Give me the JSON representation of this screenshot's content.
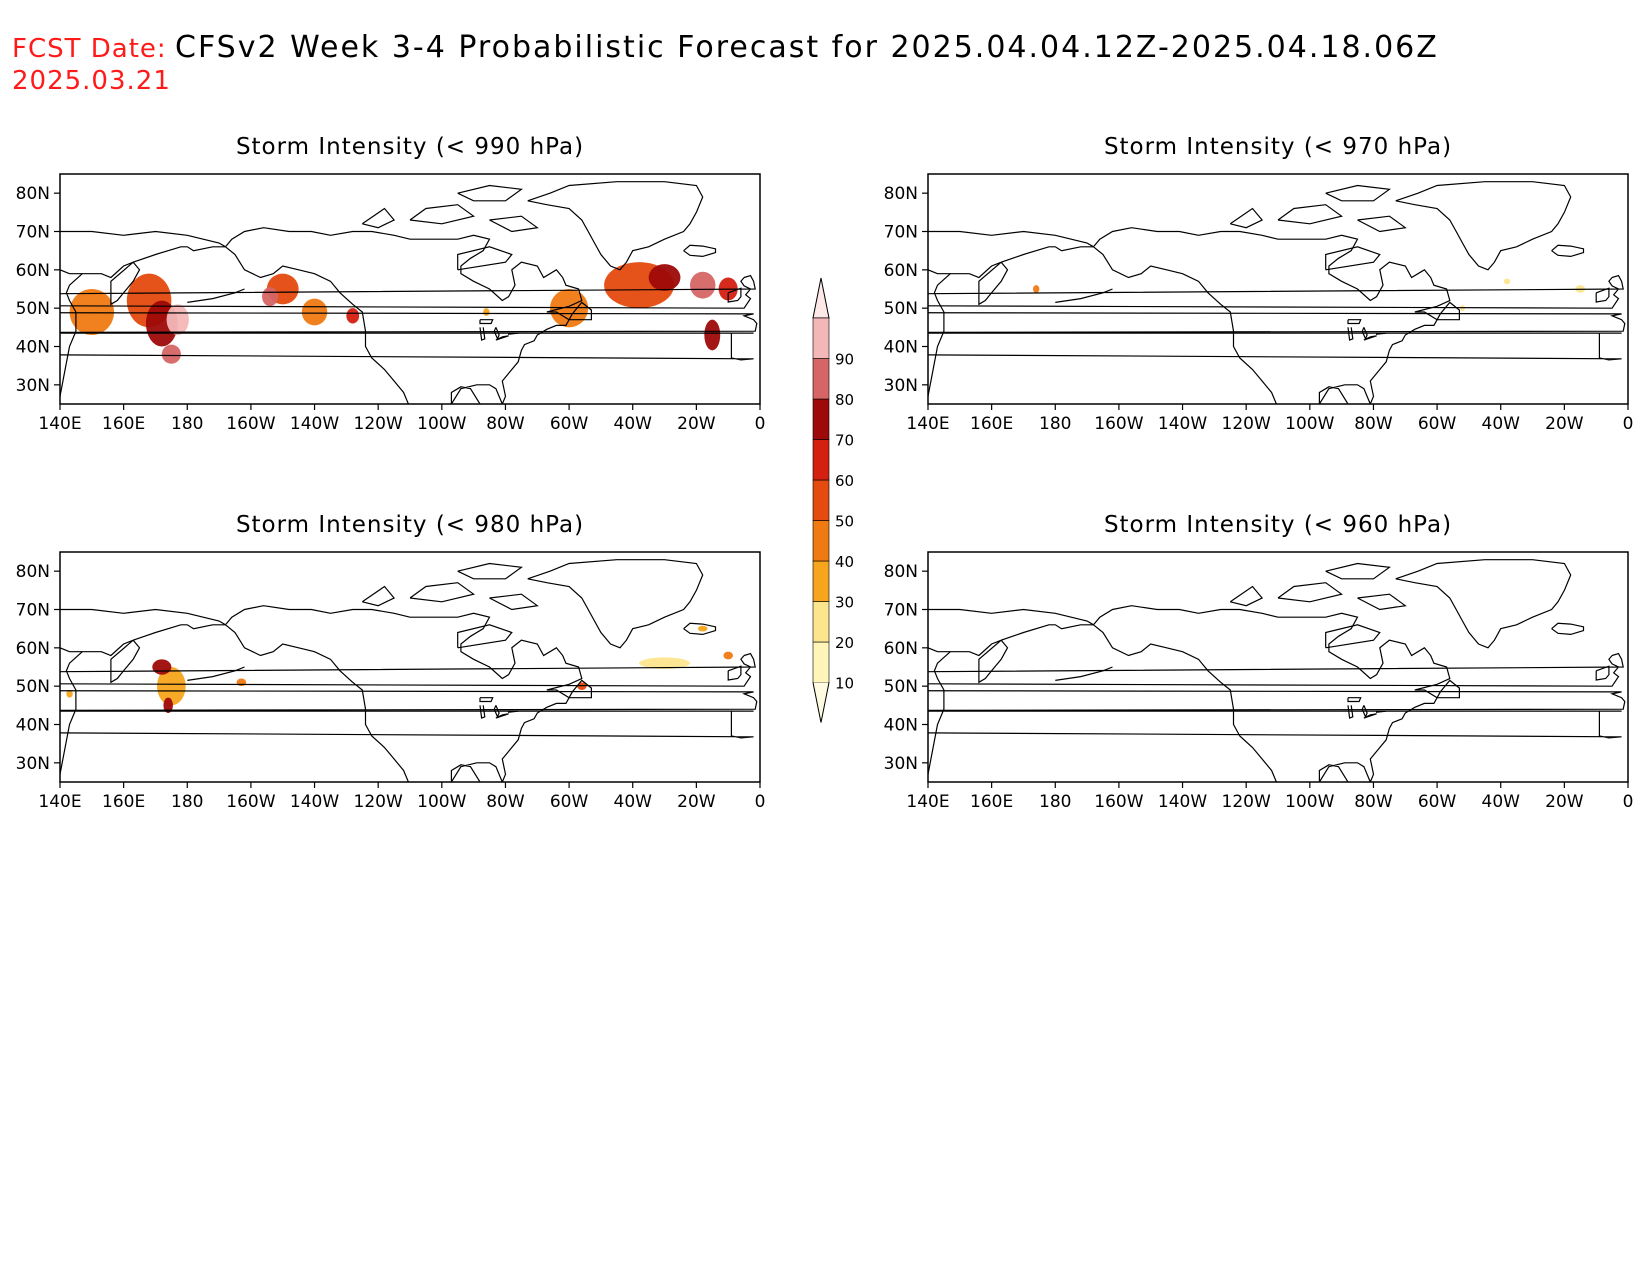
{
  "header": {
    "fcst_label": "FCST Date:",
    "fcst_date": "2025.03.21",
    "title": "CFSv2 Week 3-4 Probabilistic Forecast for 2025.04.04.12Z-2025.04.18.06Z"
  },
  "lon_labels": [
    "140E",
    "160E",
    "180",
    "160W",
    "140W",
    "120W",
    "100W",
    "80W",
    "60W",
    "40W",
    "20W",
    "0"
  ],
  "lat_labels": [
    "80N",
    "70N",
    "60N",
    "50N",
    "40N",
    "30N"
  ],
  "colorbar": {
    "levels": [
      "10",
      "20",
      "30",
      "40",
      "50",
      "60",
      "70",
      "80",
      "90"
    ],
    "colors": [
      "#fff5b8",
      "#fde58e",
      "#f6a51c",
      "#f07a12",
      "#e54a0e",
      "#d42010",
      "#9e0a0a",
      "#d66565",
      "#f4b7b7",
      "#fde7e7"
    ]
  },
  "panels": [
    {
      "id": "p990",
      "title": "Storm Intensity (< 990 hPa)",
      "blobs": [
        {
          "lon": 150,
          "lat": 49,
          "w": 14,
          "h": 12,
          "lvl": 3
        },
        {
          "lon": 168,
          "lat": 52,
          "w": 14,
          "h": 14,
          "lvl": 4
        },
        {
          "lon": 172,
          "lat": 46,
          "w": 10,
          "h": 12,
          "lvl": 6
        },
        {
          "lon": 177,
          "lat": 47,
          "w": 7,
          "h": 8,
          "lvl": 8
        },
        {
          "lon": 175,
          "lat": 38,
          "w": 6,
          "h": 5,
          "lvl": 7
        },
        {
          "lon": -150,
          "lat": 55,
          "w": 10,
          "h": 8,
          "lvl": 4
        },
        {
          "lon": -154,
          "lat": 53,
          "w": 5,
          "h": 5,
          "lvl": 7
        },
        {
          "lon": -140,
          "lat": 49,
          "w": 8,
          "h": 7,
          "lvl": 3
        },
        {
          "lon": -128,
          "lat": 48,
          "w": 4,
          "h": 4,
          "lvl": 5
        },
        {
          "lon": -86,
          "lat": 49,
          "w": 2,
          "h": 2,
          "lvl": 2
        },
        {
          "lon": -60,
          "lat": 50,
          "w": 12,
          "h": 10,
          "lvl": 3
        },
        {
          "lon": -38,
          "lat": 56,
          "w": 22,
          "h": 12,
          "lvl": 4
        },
        {
          "lon": -30,
          "lat": 58,
          "w": 10,
          "h": 7,
          "lvl": 6
        },
        {
          "lon": -18,
          "lat": 56,
          "w": 8,
          "h": 7,
          "lvl": 7
        },
        {
          "lon": -15,
          "lat": 43,
          "w": 5,
          "h": 8,
          "lvl": 6
        },
        {
          "lon": -10,
          "lat": 55,
          "w": 6,
          "h": 6,
          "lvl": 5
        }
      ]
    },
    {
      "id": "p970",
      "title": "Storm Intensity (< 970 hPa)",
      "blobs": [
        {
          "lon": 174,
          "lat": 55,
          "w": 2,
          "h": 2,
          "lvl": 3
        },
        {
          "lon": -38,
          "lat": 57,
          "w": 2,
          "h": 1.5,
          "lvl": 1
        },
        {
          "lon": -15,
          "lat": 55,
          "w": 3,
          "h": 2,
          "lvl": 1
        },
        {
          "lon": -52,
          "lat": 50,
          "w": 1.5,
          "h": 1.5,
          "lvl": 1
        }
      ]
    },
    {
      "id": "p980",
      "title": "Storm Intensity (< 980 hPa)",
      "blobs": [
        {
          "lon": 175,
          "lat": 50,
          "w": 9,
          "h": 10,
          "lvl": 2
        },
        {
          "lon": 172,
          "lat": 55,
          "w": 6,
          "h": 4,
          "lvl": 6
        },
        {
          "lon": 174,
          "lat": 45,
          "w": 3,
          "h": 4,
          "lvl": 6
        },
        {
          "lon": 143,
          "lat": 48,
          "w": 2,
          "h": 2,
          "lvl": 2
        },
        {
          "lon": -163,
          "lat": 51,
          "w": 3,
          "h": 2,
          "lvl": 3
        },
        {
          "lon": -56,
          "lat": 50,
          "w": 3,
          "h": 2,
          "lvl": 4
        },
        {
          "lon": -30,
          "lat": 56,
          "w": 16,
          "h": 3,
          "lvl": 1
        },
        {
          "lon": -18,
          "lat": 65,
          "w": 3,
          "h": 1.5,
          "lvl": 2
        },
        {
          "lon": -10,
          "lat": 58,
          "w": 3,
          "h": 2,
          "lvl": 3
        }
      ]
    },
    {
      "id": "p960",
      "title": "Storm Intensity (< 960 hPa)",
      "blobs": []
    }
  ]
}
